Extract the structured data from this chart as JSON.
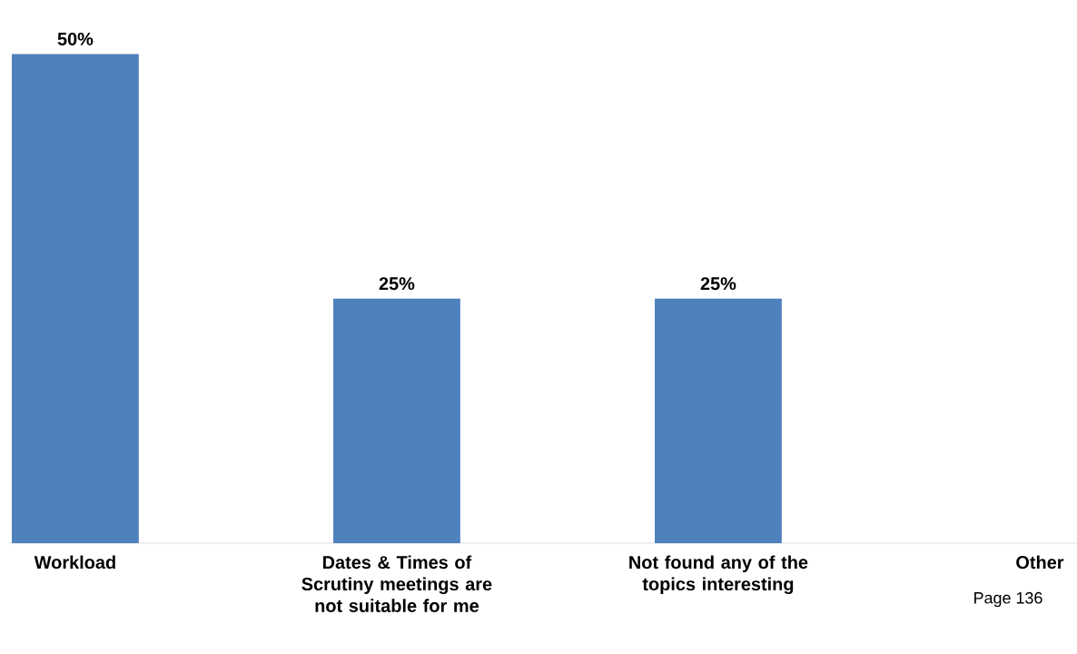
{
  "chart_data": {
    "type": "bar",
    "categories": [
      "Workload",
      "Dates & Times of Scrutiny meetings are not suitable for me",
      "Not found any of the topics interesting",
      "Other"
    ],
    "values": [
      50,
      25,
      25,
      0
    ],
    "value_labels": [
      "50%",
      "25%",
      "25%",
      null
    ],
    "color": "#4f81bd",
    "annotations": [
      "Page 136"
    ]
  }
}
